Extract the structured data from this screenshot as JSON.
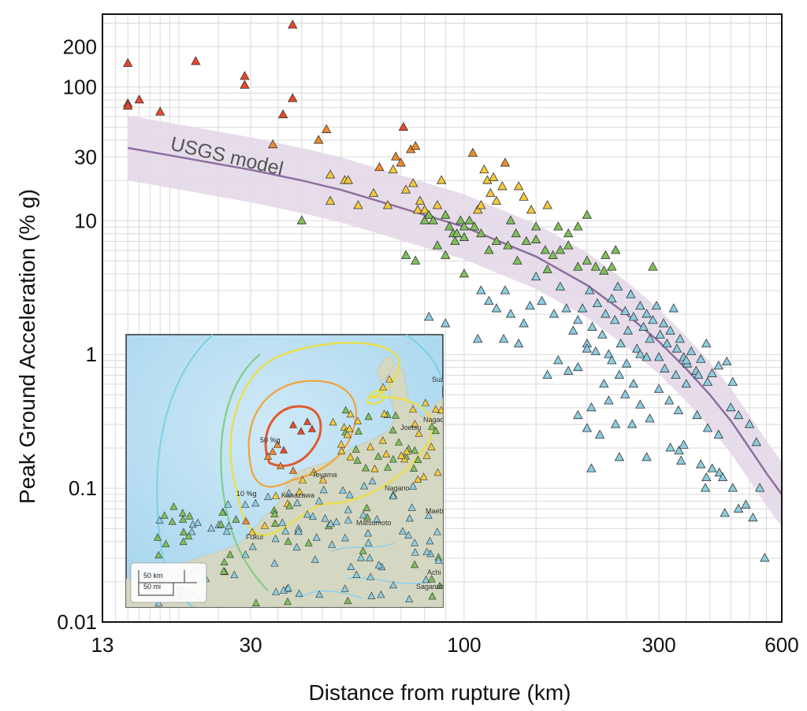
{
  "chart_data": {
    "type": "scatter",
    "title": "",
    "xlabel": "Distance from rupture (km)",
    "ylabel": "Peak Ground Acceleration  (% g)",
    "xscale": "log",
    "yscale": "log",
    "xlim": [
      13,
      600
    ],
    "ylim": [
      0.01,
      350
    ],
    "x_ticks": [
      {
        "value": 13,
        "label": "13"
      },
      {
        "value": 30,
        "label": "30"
      },
      {
        "value": 100,
        "label": "100"
      },
      {
        "value": 300,
        "label": "300"
      },
      {
        "value": 600,
        "label": "600"
      }
    ],
    "y_ticks": [
      {
        "value": 0.01,
        "label": "0.01"
      },
      {
        "value": 0.1,
        "label": "0.1"
      },
      {
        "value": 1,
        "label": "1"
      },
      {
        "value": 10,
        "label": "10"
      },
      {
        "value": 30,
        "label": "30"
      },
      {
        "value": 100,
        "label": "100"
      },
      {
        "value": 200,
        "label": "200"
      }
    ],
    "grid": true,
    "model": {
      "name": "USGS model",
      "color": "#8e6fa0",
      "band_color": "#e3d7e6",
      "curve": [
        [
          15,
          35
        ],
        [
          20,
          30
        ],
        [
          30,
          24
        ],
        [
          40,
          20
        ],
        [
          50,
          17
        ],
        [
          70,
          12.5
        ],
        [
          100,
          9
        ],
        [
          150,
          5.4
        ],
        [
          200,
          3.3
        ],
        [
          250,
          2.0
        ],
        [
          300,
          1.25
        ],
        [
          350,
          0.78
        ],
        [
          400,
          0.5
        ],
        [
          450,
          0.32
        ],
        [
          500,
          0.2
        ],
        [
          550,
          0.13
        ],
        [
          600,
          0.09
        ]
      ],
      "band_factor": 1.75
    },
    "marker": "triangle",
    "color_scale": [
      {
        "min": 50,
        "color": "#e8472b"
      },
      {
        "min": 25,
        "color": "#f08a2e"
      },
      {
        "min": 12,
        "color": "#f5c93d"
      },
      {
        "min": 4,
        "color": "#7fbf5a"
      },
      {
        "min": 0,
        "color": "#8ccde0"
      }
    ],
    "points": [
      [
        15,
        150
      ],
      [
        15,
        75
      ],
      [
        15,
        72
      ],
      [
        16,
        80
      ],
      [
        18,
        65
      ],
      [
        22,
        155
      ],
      [
        29,
        120
      ],
      [
        29,
        103
      ],
      [
        38,
        290
      ],
      [
        38,
        82
      ],
      [
        36,
        62
      ],
      [
        34,
        37
      ],
      [
        44,
        40
      ],
      [
        46,
        48
      ],
      [
        47,
        14
      ],
      [
        47,
        22
      ],
      [
        51,
        20
      ],
      [
        52,
        20
      ],
      [
        55,
        13
      ],
      [
        60,
        16
      ],
      [
        65,
        13
      ],
      [
        62,
        25
      ],
      [
        67,
        24
      ],
      [
        68,
        30
      ],
      [
        70,
        27
      ],
      [
        71,
        50
      ],
      [
        72,
        17
      ],
      [
        74,
        34
      ],
      [
        75,
        19
      ],
      [
        76,
        36
      ],
      [
        77,
        12
      ],
      [
        78,
        14
      ],
      [
        80,
        10
      ],
      [
        80,
        12
      ],
      [
        82,
        11
      ],
      [
        84,
        10
      ],
      [
        86,
        13
      ],
      [
        88,
        20
      ],
      [
        90,
        11
      ],
      [
        92,
        9
      ],
      [
        94,
        8
      ],
      [
        96,
        8
      ],
      [
        98,
        10
      ],
      [
        100,
        9
      ],
      [
        103,
        10
      ],
      [
        105,
        32
      ],
      [
        108,
        12
      ],
      [
        110,
        13
      ],
      [
        112,
        24
      ],
      [
        114,
        20
      ],
      [
        116,
        16
      ],
      [
        118,
        21
      ],
      [
        120,
        14
      ],
      [
        124,
        18
      ],
      [
        126,
        27
      ],
      [
        130,
        10
      ],
      [
        134,
        8
      ],
      [
        136,
        18
      ],
      [
        140,
        15
      ],
      [
        146,
        12
      ],
      [
        150,
        9
      ],
      [
        160,
        13
      ],
      [
        170,
        9
      ],
      [
        180,
        8
      ],
      [
        190,
        9
      ],
      [
        200,
        11
      ],
      [
        40,
        10
      ],
      [
        72,
        5.5
      ],
      [
        76,
        5
      ],
      [
        86,
        6.5
      ],
      [
        90,
        5.5
      ],
      [
        95,
        7
      ],
      [
        100,
        7.5
      ],
      [
        106,
        9
      ],
      [
        110,
        8
      ],
      [
        115,
        6
      ],
      [
        120,
        7
      ],
      [
        128,
        6.5
      ],
      [
        135,
        5
      ],
      [
        142,
        7
      ],
      [
        150,
        7.2
      ],
      [
        158,
        6
      ],
      [
        165,
        5.5
      ],
      [
        172,
        6
      ],
      [
        180,
        6.5
      ],
      [
        190,
        4.5
      ],
      [
        200,
        5
      ],
      [
        210,
        4.5
      ],
      [
        222,
        5.5
      ],
      [
        230,
        4.5
      ],
      [
        235,
        6
      ],
      [
        290,
        4.5
      ],
      [
        220,
        4.2
      ],
      [
        82,
        1.9
      ],
      [
        90,
        1.7
      ],
      [
        100,
        4
      ],
      [
        110,
        3
      ],
      [
        115,
        2.5
      ],
      [
        120,
        2.2
      ],
      [
        126,
        3
      ],
      [
        130,
        2
      ],
      [
        136,
        1.2
      ],
      [
        140,
        1.7
      ],
      [
        145,
        2.3
      ],
      [
        150,
        3.8
      ],
      [
        155,
        2.5
      ],
      [
        160,
        4.3
      ],
      [
        166,
        2
      ],
      [
        172,
        3.2
      ],
      [
        178,
        2.2
      ],
      [
        185,
        1.5
      ],
      [
        190,
        1.8
      ],
      [
        195,
        2.2
      ],
      [
        200,
        1.2
      ],
      [
        203,
        3
      ],
      [
        206,
        1.6
      ],
      [
        212,
        2.4
      ],
      [
        218,
        1.4
      ],
      [
        222,
        2
      ],
      [
        226,
        1
      ],
      [
        230,
        2.6
      ],
      [
        234,
        1.8
      ],
      [
        238,
        3.2
      ],
      [
        242,
        1.2
      ],
      [
        248,
        2.1
      ],
      [
        252,
        1.5
      ],
      [
        256,
        2.8
      ],
      [
        260,
        1.9
      ],
      [
        265,
        1.1
      ],
      [
        270,
        2.3
      ],
      [
        275,
        1.6
      ],
      [
        280,
        2
      ],
      [
        285,
        1.3
      ],
      [
        290,
        1.8
      ],
      [
        296,
        2.3
      ],
      [
        302,
        1.4
      ],
      [
        308,
        1.7
      ],
      [
        314,
        1.2
      ],
      [
        320,
        1.5
      ],
      [
        326,
        2.2
      ],
      [
        332,
        1.1
      ],
      [
        338,
        1.3
      ],
      [
        345,
        0.95
      ],
      [
        352,
        0.85
      ],
      [
        360,
        1.05
      ],
      [
        370,
        0.75
      ],
      [
        380,
        0.92
      ],
      [
        392,
        1.2
      ],
      [
        405,
        0.72
      ],
      [
        420,
        0.82
      ],
      [
        440,
        0.88
      ],
      [
        455,
        0.62
      ],
      [
        108,
        1.3
      ],
      [
        125,
        1.3
      ],
      [
        160,
        0.7
      ],
      [
        170,
        0.9
      ],
      [
        180,
        0.75
      ],
      [
        190,
        0.8
      ],
      [
        200,
        1.1
      ],
      [
        210,
        1.05
      ],
      [
        220,
        0.6
      ],
      [
        230,
        0.9
      ],
      [
        240,
        0.7
      ],
      [
        250,
        0.85
      ],
      [
        260,
        0.6
      ],
      [
        270,
        1
      ],
      [
        280,
        0.95
      ],
      [
        300,
        0.95
      ],
      [
        310,
        0.78
      ],
      [
        330,
        0.7
      ],
      [
        350,
        0.9
      ],
      [
        375,
        0.7
      ],
      [
        395,
        0.62
      ],
      [
        190,
        0.35
      ],
      [
        200,
        0.28
      ],
      [
        205,
        0.4
      ],
      [
        215,
        0.25
      ],
      [
        226,
        0.45
      ],
      [
        235,
        0.3
      ],
      [
        248,
        0.5
      ],
      [
        258,
        0.3
      ],
      [
        270,
        0.42
      ],
      [
        285,
        0.33
      ],
      [
        300,
        0.55
      ],
      [
        318,
        0.45
      ],
      [
        335,
        0.38
      ],
      [
        350,
        0.6
      ],
      [
        372,
        0.35
      ],
      [
        395,
        0.28
      ],
      [
        420,
        0.25
      ],
      [
        450,
        0.4
      ],
      [
        470,
        0.35
      ],
      [
        500,
        0.3
      ],
      [
        520,
        0.22
      ],
      [
        205,
        0.14
      ],
      [
        240,
        0.17
      ],
      [
        280,
        0.17
      ],
      [
        320,
        0.2
      ],
      [
        336,
        0.19
      ],
      [
        340,
        0.16
      ],
      [
        345,
        0.21
      ],
      [
        380,
        0.15
      ],
      [
        392,
        0.12
      ],
      [
        405,
        0.14
      ],
      [
        422,
        0.13
      ],
      [
        430,
        0.12
      ],
      [
        455,
        0.1
      ],
      [
        470,
        0.07
      ],
      [
        490,
        0.075
      ],
      [
        510,
        0.06
      ],
      [
        390,
        0.1
      ],
      [
        530,
        0.1
      ],
      [
        435,
        0.065
      ],
      [
        545,
        0.03
      ]
    ]
  },
  "inset_map": {
    "labels": {
      "contour_50": "50 %g",
      "contour_10": "10 %g",
      "cities": [
        "Nagao",
        "Joetsu",
        "Toyama",
        "Kanazawa",
        "Suzu",
        "Fukui",
        "Matsumoto",
        "Maeb",
        "Nagano",
        "Achi",
        "Sagamihar"
      ],
      "scale_km": "50 km",
      "scale_mi": "50 mi"
    },
    "colors": {
      "sea": "#b9dff3",
      "land": "#d6d9c6",
      "border": "#333333"
    }
  }
}
